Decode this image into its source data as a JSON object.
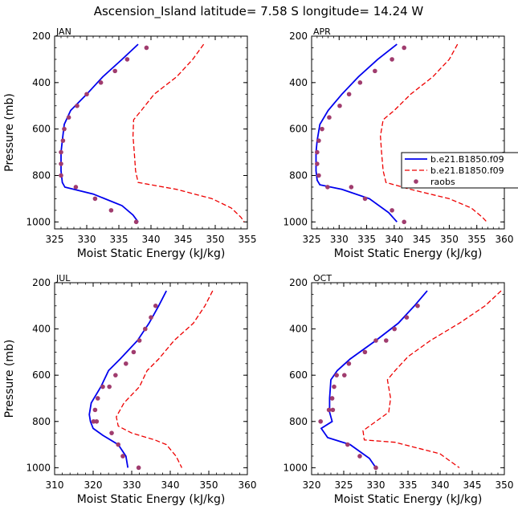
{
  "title": "Ascension_Island  latitude= 7.58 S longitude= 14.24 W",
  "colors": {
    "model1": "#0000ee",
    "model2": "#ee0000",
    "raobs": "#a03c6e"
  },
  "legend": {
    "entries": [
      "b.e21.B1850.f09",
      "b.e21.B1850.f09",
      "raobs"
    ]
  },
  "chart_data": [
    {
      "type": "line",
      "panel": "JAN",
      "xlabel": "Moist Static Energy (kJ/kg)",
      "ylabel": "Pressure (mb)",
      "xlim": [
        325,
        355
      ],
      "ylim": [
        200,
        1030
      ],
      "xticks": [
        325,
        330,
        335,
        340,
        345,
        350,
        355
      ],
      "yticks": [
        200,
        400,
        600,
        800,
        1000
      ],
      "series": [
        {
          "name": "b.e21.B1850.f09",
          "style": "solid",
          "x": [
            338.0,
            335.5,
            332.5,
            330.0,
            327.5,
            326.5,
            326.2,
            326.0,
            326.0,
            326.2,
            326.6,
            331.0,
            335.5,
            337.2,
            338.0
          ],
          "y": [
            235,
            300,
            375,
            450,
            520,
            580,
            650,
            700,
            780,
            830,
            850,
            880,
            930,
            970,
            1000
          ]
        },
        {
          "name": "b.e21.B1850.f09",
          "style": "dashed",
          "x": [
            348.2,
            346.5,
            344.0,
            340.5,
            338.5,
            337.3,
            337.2,
            337.4,
            337.6,
            338.0,
            344.0,
            349.5,
            352.5,
            354.0,
            354.5
          ],
          "y": [
            235,
            300,
            375,
            450,
            520,
            560,
            630,
            700,
            780,
            830,
            860,
            900,
            940,
            980,
            1000
          ]
        },
        {
          "name": "raobs",
          "style": "markers",
          "x": [
            339.3,
            336.3,
            334.4,
            332.2,
            330.0,
            328.5,
            327.2,
            326.5,
            326.3,
            326.0,
            326.0,
            326.0,
            328.3,
            331.3,
            333.8,
            337.7
          ],
          "y": [
            250,
            300,
            350,
            400,
            450,
            500,
            550,
            600,
            650,
            700,
            750,
            800,
            850,
            900,
            950,
            1000
          ]
        }
      ]
    },
    {
      "type": "line",
      "panel": "APR",
      "xlabel": "Moist Static Energy (kJ/kg)",
      "ylabel": "",
      "xlim": [
        325,
        360
      ],
      "ylim": [
        200,
        1030
      ],
      "xticks": [
        325,
        330,
        335,
        340,
        345,
        350,
        355,
        360
      ],
      "yticks": [
        200,
        400,
        600,
        800,
        1000
      ],
      "series": [
        {
          "name": "b.e21.B1850.f09",
          "style": "solid",
          "x": [
            340.5,
            337.0,
            333.5,
            330.5,
            328.0,
            326.5,
            326.0,
            325.8,
            325.8,
            326.0,
            326.5,
            330.5,
            335.5,
            339.0,
            340.5
          ],
          "y": [
            235,
            300,
            375,
            450,
            520,
            580,
            650,
            700,
            780,
            820,
            840,
            860,
            900,
            960,
            1000
          ]
        },
        {
          "name": "b.e21.B1850.f09",
          "style": "dashed",
          "x": [
            351.5,
            350.0,
            347.0,
            343.0,
            340.0,
            338.0,
            337.5,
            337.7,
            338.0,
            338.5,
            343.0,
            350.0,
            354.0,
            356.0,
            356.8
          ],
          "y": [
            235,
            300,
            375,
            450,
            520,
            560,
            630,
            700,
            780,
            830,
            860,
            900,
            940,
            980,
            1000
          ]
        },
        {
          "name": "raobs",
          "style": "markers",
          "x": [
            341.8,
            339.6,
            336.5,
            333.8,
            331.8,
            330.1,
            328.2,
            326.9,
            326.3,
            326.0,
            326.0,
            326.3,
            327.9,
            332.2,
            334.7,
            339.6,
            341.8
          ],
          "y": [
            250,
            300,
            350,
            400,
            450,
            500,
            550,
            600,
            650,
            700,
            750,
            800,
            850,
            850,
            900,
            950,
            1000
          ]
        }
      ]
    },
    {
      "type": "line",
      "panel": "JUL",
      "xlabel": "Moist Static Energy (kJ/kg)",
      "ylabel": "Pressure (mb)",
      "xlim": [
        310,
        360
      ],
      "ylim": [
        200,
        1030
      ],
      "xticks": [
        310,
        320,
        330,
        340,
        350,
        360
      ],
      "yticks": [
        200,
        400,
        600,
        800,
        1000
      ],
      "series": [
        {
          "name": "b.e21.B1850.f09",
          "style": "solid",
          "x": [
            339.0,
            337.0,
            334.5,
            331.5,
            327.0,
            324.0,
            322.0,
            319.5,
            319.0,
            319.3,
            320.0,
            322.5,
            326.5,
            328.5,
            329.0
          ],
          "y": [
            235,
            300,
            375,
            450,
            530,
            580,
            650,
            720,
            770,
            800,
            830,
            860,
            900,
            950,
            1000
          ]
        },
        {
          "name": "b.e21.B1850.f09",
          "style": "dashed",
          "x": [
            351.0,
            349.0,
            346.0,
            341.0,
            337.0,
            334.0,
            332.0,
            328.0,
            326.0,
            326.5,
            330.0,
            336.0,
            339.0,
            341.5,
            343.0
          ],
          "y": [
            235,
            300,
            375,
            450,
            530,
            580,
            650,
            720,
            780,
            820,
            850,
            880,
            900,
            950,
            1000
          ]
        },
        {
          "name": "raobs",
          "style": "markers",
          "x": [
            336.2,
            335.0,
            333.5,
            332.0,
            330.5,
            328.5,
            325.8,
            324.2,
            322.5,
            321.2,
            320.5,
            320.1,
            320.9,
            324.8,
            326.5,
            327.7,
            331.8
          ],
          "y": [
            300,
            350,
            400,
            450,
            500,
            550,
            600,
            650,
            650,
            700,
            750,
            800,
            800,
            850,
            900,
            950,
            1000
          ]
        }
      ]
    },
    {
      "type": "line",
      "panel": "OCT",
      "xlabel": "Moist Static Energy (kJ/kg)",
      "ylabel": "",
      "xlim": [
        320,
        350
      ],
      "ylim": [
        200,
        1030
      ],
      "xticks": [
        320,
        325,
        330,
        335,
        340,
        345,
        350
      ],
      "yticks": [
        200,
        400,
        600,
        800,
        1000
      ],
      "series": [
        {
          "name": "b.e21.B1850.f09",
          "style": "solid",
          "x": [
            338.0,
            336.0,
            333.5,
            330.0,
            326.0,
            324.0,
            323.0,
            322.8,
            322.8,
            323.2,
            321.5,
            322.5,
            326.0,
            329.0,
            330.0
          ],
          "y": [
            235,
            300,
            375,
            450,
            530,
            580,
            620,
            700,
            760,
            800,
            830,
            870,
            900,
            960,
            1000
          ]
        },
        {
          "name": "b.e21.B1850.f09",
          "style": "dashed",
          "x": [
            349.5,
            347.0,
            343.0,
            338.5,
            335.0,
            333.0,
            331.8,
            332.3,
            332.0,
            330.0,
            328.0,
            328.2,
            333.0,
            340.0,
            343.0
          ],
          "y": [
            235,
            300,
            375,
            450,
            520,
            580,
            620,
            700,
            760,
            800,
            840,
            880,
            890,
            940,
            1000
          ]
        },
        {
          "name": "raobs",
          "style": "markers",
          "x": [
            336.5,
            334.8,
            332.9,
            331.6,
            330.0,
            328.3,
            325.8,
            325.1,
            323.9,
            323.5,
            323.2,
            323.3,
            322.7,
            321.4,
            325.6,
            327.5,
            330.0
          ],
          "y": [
            300,
            350,
            400,
            450,
            450,
            500,
            550,
            600,
            600,
            650,
            700,
            750,
            750,
            800,
            900,
            950,
            1000
          ]
        }
      ]
    }
  ]
}
